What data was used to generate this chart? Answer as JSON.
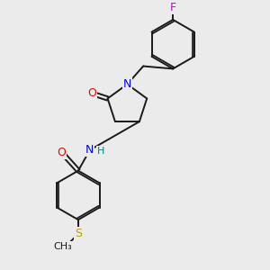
{
  "bg_color": "#ebebeb",
  "bond_color": "#1a1a1a",
  "atom_colors": {
    "O": "#ff0000",
    "N": "#0000ff",
    "H": "#008080",
    "F": "#cc00cc",
    "S": "#b8a000",
    "C": "#1a1a1a"
  },
  "line_width": 1.4,
  "font_size": 9
}
